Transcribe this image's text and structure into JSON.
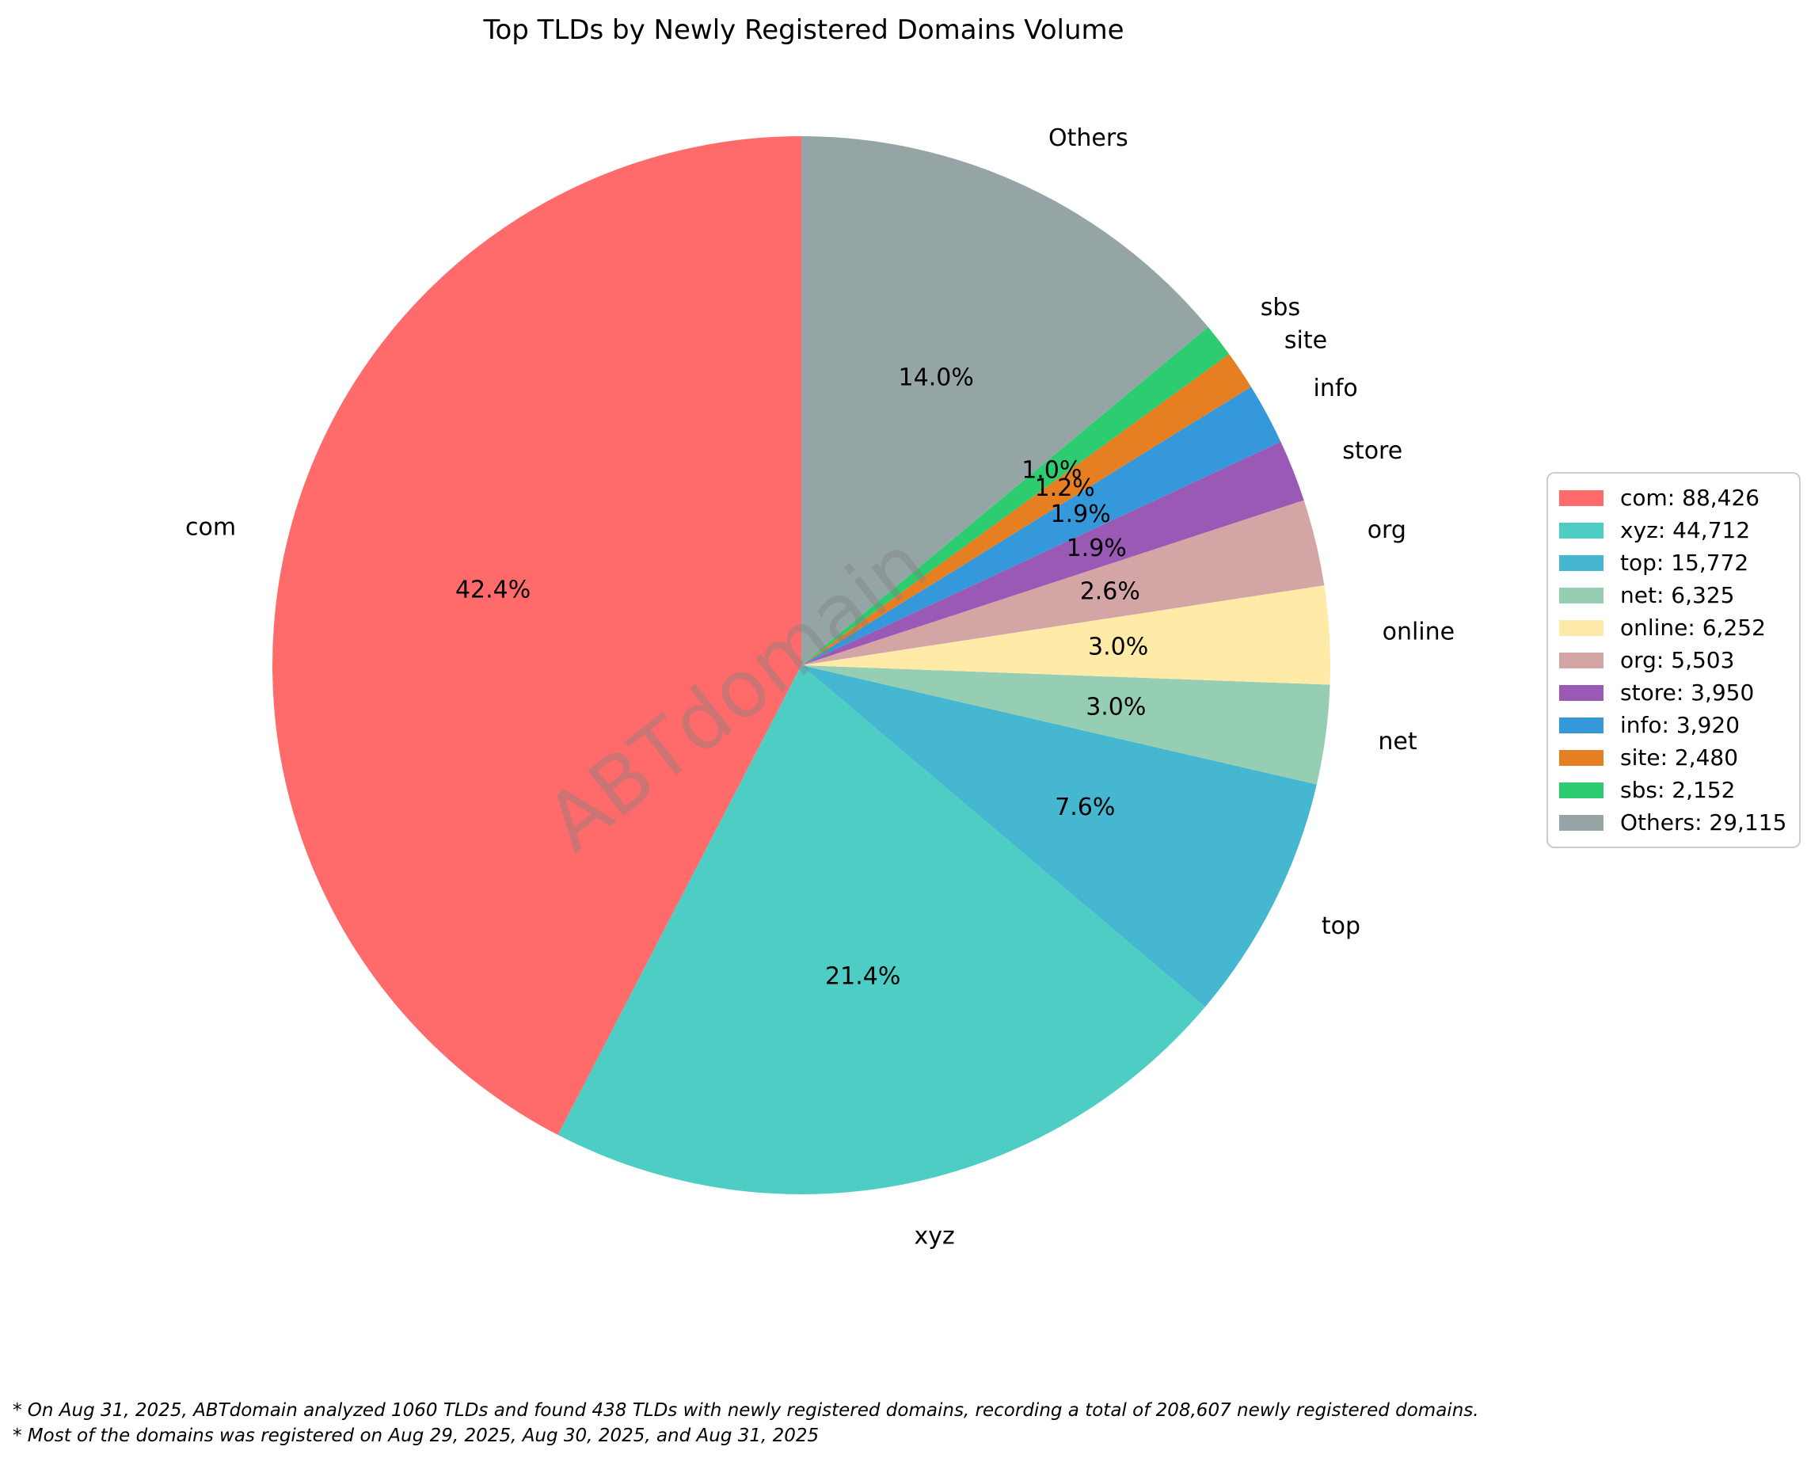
{
  "title": "Top TLDs by Newly Registered Domains Volume",
  "watermark": {
    "text": "ABTdomain",
    "color": "rgba(128,128,128,0.4)"
  },
  "footnotes": [
    "* On Aug 31, 2025, ABTdomain analyzed 1060 TLDs and found 438 TLDs with newly registered domains, recording a total of 208,607 newly registered domains.",
    "* Most of the domains was registered on Aug 29, 2025, Aug 30, 2025, and Aug 31, 2025"
  ],
  "chart_data": {
    "type": "pie",
    "title": "Top TLDs by Newly Registered Domains Volume",
    "total": 208607,
    "start_angle_deg": 90,
    "counterclockwise": true,
    "legend_position": "right",
    "slices": [
      {
        "label": "com",
        "value": 88426,
        "pct_label": "42.4%",
        "color": "#FF6B6B",
        "legend_label": "com: 88,426"
      },
      {
        "label": "xyz",
        "value": 44712,
        "pct_label": "21.4%",
        "color": "#4ECDC4",
        "legend_label": "xyz: 44,712"
      },
      {
        "label": "top",
        "value": 15772,
        "pct_label": "7.6%",
        "color": "#45B7D1",
        "legend_label": "top: 15,772"
      },
      {
        "label": "net",
        "value": 6325,
        "pct_label": "3.0%",
        "color": "#96CEB4",
        "legend_label": "net: 6,325"
      },
      {
        "label": "online",
        "value": 6252,
        "pct_label": "3.0%",
        "color": "#FFEAA7",
        "legend_label": "online: 6,252"
      },
      {
        "label": "org",
        "value": 5503,
        "pct_label": "2.6%",
        "color": "#D4A5A5",
        "legend_label": "org: 5,503"
      },
      {
        "label": "store",
        "value": 3950,
        "pct_label": "1.9%",
        "color": "#9B59B6",
        "legend_label": "store: 3,950"
      },
      {
        "label": "info",
        "value": 3920,
        "pct_label": "1.9%",
        "color": "#3498DB",
        "legend_label": "info: 3,920"
      },
      {
        "label": "site",
        "value": 2480,
        "pct_label": "1.2%",
        "color": "#E67E22",
        "legend_label": "site: 2,480"
      },
      {
        "label": "sbs",
        "value": 2152,
        "pct_label": "1.0%",
        "color": "#2ECC71",
        "legend_label": "sbs: 2,152"
      },
      {
        "label": "Others",
        "value": 29115,
        "pct_label": "14.0%",
        "color": "#95A5A6",
        "legend_label": "Others: 29,115"
      }
    ]
  }
}
